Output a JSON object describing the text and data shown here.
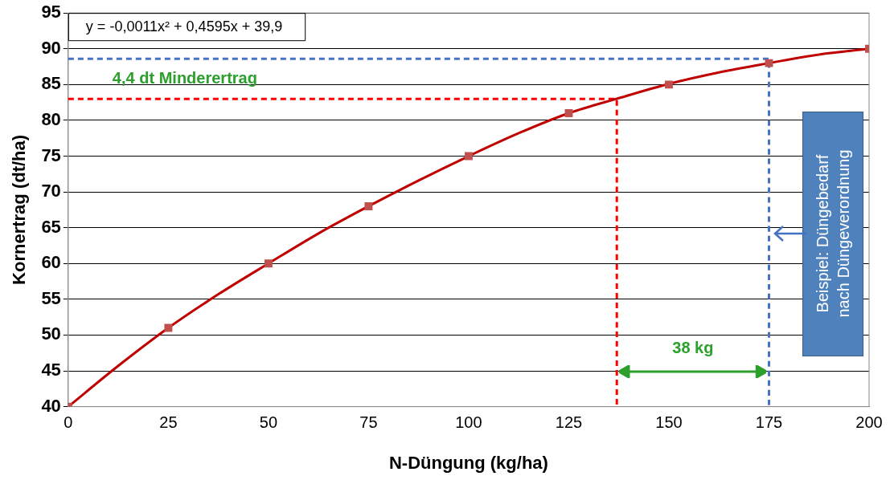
{
  "chart_data": {
    "type": "scatter",
    "xlabel": "N-Düngung (kg/ha)",
    "ylabel": "Kornertrag (dt/ha)",
    "xlim": [
      0,
      200
    ],
    "xticks": [
      0,
      25,
      50,
      75,
      100,
      125,
      150,
      175,
      200
    ],
    "ylim": [
      40,
      95
    ],
    "yticks": [
      40,
      45,
      50,
      55,
      60,
      65,
      70,
      75,
      80,
      85,
      90,
      95
    ],
    "grid": "y",
    "marker": "square",
    "series": [
      {
        "type": "line",
        "color": "#c00000",
        "marker": "none",
        "x": [
          0,
          12.5,
          25,
          37.5,
          50,
          62.5,
          75,
          87.5,
          100,
          112.5,
          125,
          137.5,
          150,
          162.5,
          175,
          187.5,
          200
        ],
        "values": [
          40,
          45.7,
          51,
          55.7,
          60,
          64.2,
          68,
          71.6,
          75,
          78.2,
          81,
          83.1,
          85.1,
          86.7,
          88,
          89.2,
          90
        ]
      },
      {
        "color": "#c0504d",
        "x": [
          0,
          25,
          50,
          75,
          100,
          125,
          150,
          175,
          200
        ],
        "values": [
          40,
          51,
          60,
          68,
          75,
          81,
          85,
          88,
          90
        ]
      },
      {
        "type": "line",
        "color": "#ff0000",
        "marker": "none",
        "line_style": "dashed",
        "x": [
          0,
          137,
          137
        ],
        "values": [
          83,
          83,
          40
        ]
      },
      {
        "type": "line",
        "color": "#4472c4",
        "marker": "none",
        "line_style": "dashed",
        "x": [
          0,
          175,
          175
        ],
        "values": [
          88.6,
          88.6,
          40
        ]
      }
    ],
    "annotations": [
      "y = -0,0011x² + 0,4595x + 39,9",
      "4,4 dt Minderertrag",
      "38 kg",
      "Beispiel: Düngebedarf\nnach Düngeverordnung"
    ]
  }
}
